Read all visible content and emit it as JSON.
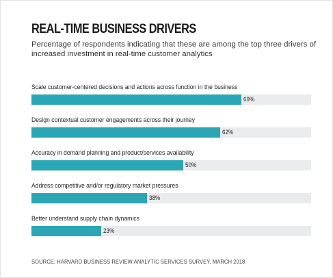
{
  "chart_data": {
    "type": "bar",
    "orientation": "horizontal",
    "title": "REAL-TIME BUSINESS DRIVERS",
    "subtitle": "Percentage of respondents indicating that these are among the top three drivers of increased investment in real-time customer analytics",
    "categories": [
      "Scale customer-centered decisions and actions across function in the business",
      "Design contextual customer engagements across their journey",
      "Accuracy in demand planning and product/services availability",
      "Address competitive and/or regulatory market pressures",
      "Better understand supply chain dynamics"
    ],
    "values": [
      69,
      62,
      50,
      38,
      23
    ],
    "value_labels": [
      "69%",
      "62%",
      "50%",
      "38%",
      "23%"
    ],
    "xlim": [
      0,
      100
    ],
    "bar_color": "#2aa6b4",
    "track_color": "#e9ebec",
    "grid": false,
    "source": "SOURCE: HARVARD BUSINESS REVIEW ANALYTIC SERVICES SURVEY, MARCH 2018"
  }
}
